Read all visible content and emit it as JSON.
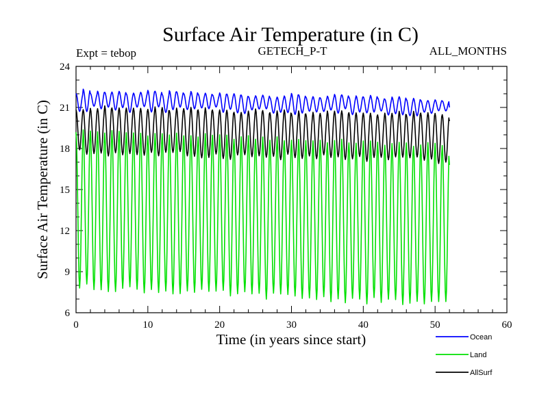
{
  "chart_data": {
    "type": "line",
    "title": "Surface Air Temperature (in C)",
    "subtitle_left": "Expt = tebop",
    "subtitle_center": "GETECH_P-T",
    "subtitle_right": "ALL_MONTHS",
    "xlabel": "Time (in years since start)",
    "ylabel": "Surface Air Temperature (in C)",
    "xlim": [
      0,
      60
    ],
    "ylim": [
      6,
      24
    ],
    "x_ticks": [
      0,
      10,
      20,
      30,
      40,
      50,
      60
    ],
    "y_ticks": [
      6,
      9,
      12,
      15,
      18,
      21,
      24
    ],
    "x_tick_labels": [
      "0",
      "10",
      "20",
      "30",
      "40",
      "50",
      "60"
    ],
    "y_tick_labels": [
      "6",
      "9",
      "12",
      "15",
      "18",
      "21",
      "24"
    ],
    "grid": false,
    "legend_position": "bottom-right",
    "series": [
      {
        "name": "Ocean",
        "color": "#0000ff",
        "pattern": "seasonal_cycle",
        "x_start": 0,
        "x_end": 52,
        "cycles_per_year": 1,
        "max_start": 22.2,
        "max_end": 21.6,
        "min_start": 20.9,
        "min_end": 20.6,
        "end_value": 21.0
      },
      {
        "name": "Land",
        "color": "#00e000",
        "pattern": "seasonal_cycle",
        "x_start": 0,
        "x_end": 52,
        "cycles_per_year": 1,
        "max_start": 19.3,
        "max_end": 18.2,
        "min_start": 7.9,
        "min_end": 6.6,
        "end_value": 16.8
      },
      {
        "name": "AllSurf",
        "color": "#000000",
        "pattern": "seasonal_cycle",
        "x_start": 0,
        "x_end": 52,
        "cycles_per_year": 1,
        "max_start": 21.0,
        "max_end": 20.5,
        "min_start": 17.7,
        "min_end": 17.1,
        "end_value": 20.0
      }
    ]
  }
}
